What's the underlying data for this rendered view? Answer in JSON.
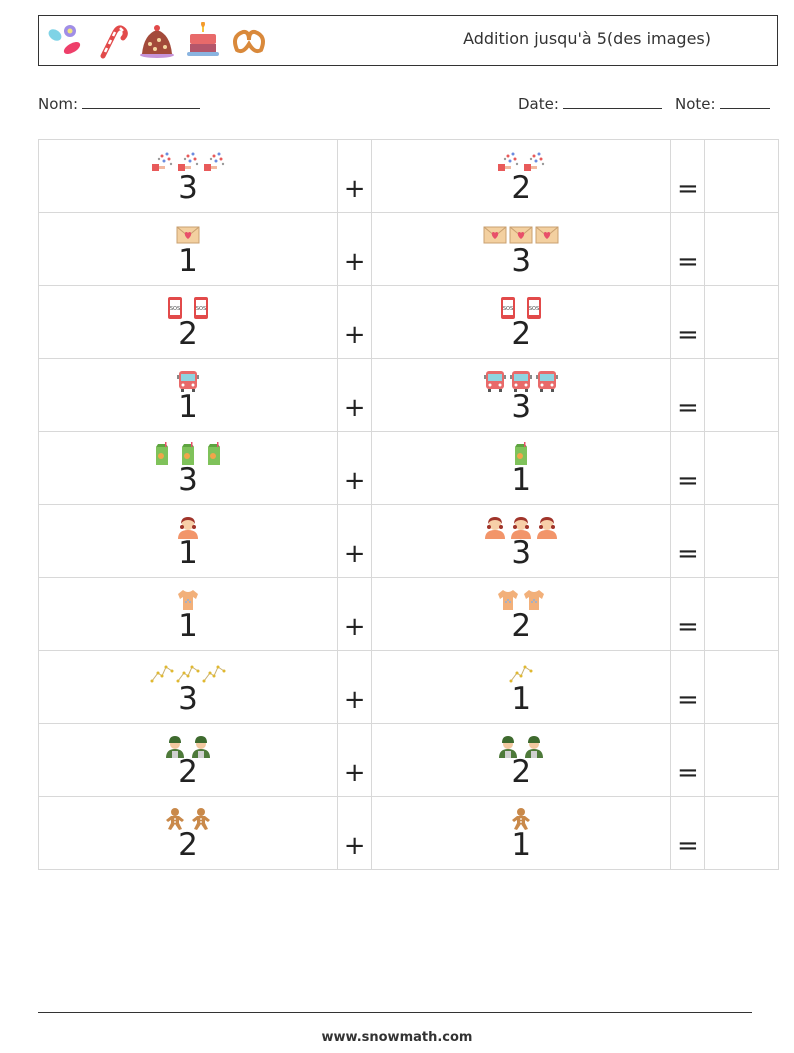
{
  "header": {
    "title": "Addition jusqu'à 5(des images)",
    "icons": [
      "candy-icon",
      "candy-cane-icon",
      "chocolate-cake-icon",
      "birthday-cake-icon",
      "pretzel-icon"
    ]
  },
  "form": {
    "name_label": "Nom:",
    "date_label": "Date:",
    "note_label": "Note:"
  },
  "problems": [
    {
      "a": 3,
      "b": 2,
      "icon": "confetti-icon",
      "plus": "+",
      "equals": "="
    },
    {
      "a": 1,
      "b": 3,
      "icon": "love-letter-icon",
      "plus": "+",
      "equals": "="
    },
    {
      "a": 2,
      "b": 2,
      "icon": "phone-sos-icon",
      "plus": "+",
      "equals": "="
    },
    {
      "a": 1,
      "b": 3,
      "icon": "bus-icon",
      "plus": "+",
      "equals": "="
    },
    {
      "a": 3,
      "b": 1,
      "icon": "juice-box-icon",
      "plus": "+",
      "equals": "="
    },
    {
      "a": 1,
      "b": 3,
      "icon": "girl-icon",
      "plus": "+",
      "equals": "="
    },
    {
      "a": 1,
      "b": 2,
      "icon": "baby-onesie-icon",
      "plus": "+",
      "equals": "="
    },
    {
      "a": 3,
      "b": 1,
      "icon": "constellation-icon",
      "plus": "+",
      "equals": "="
    },
    {
      "a": 2,
      "b": 2,
      "icon": "soldier-icon",
      "plus": "+",
      "equals": "="
    },
    {
      "a": 2,
      "b": 1,
      "icon": "gingerbread-man-icon",
      "plus": "+",
      "equals": "="
    }
  ],
  "footer": {
    "text": "www.snowmath.com"
  }
}
